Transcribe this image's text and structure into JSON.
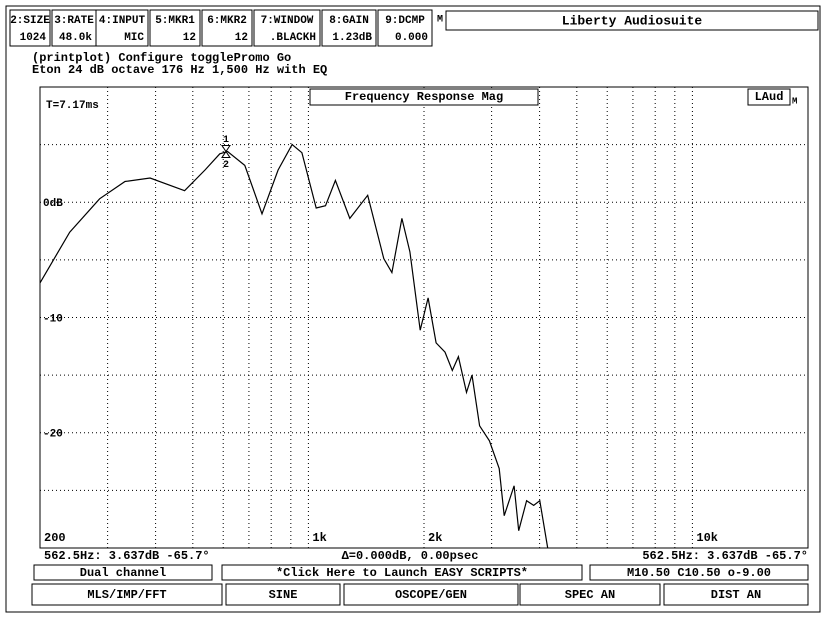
{
  "toolbar": [
    {
      "key": "2:SIZE",
      "value": "1024"
    },
    {
      "key": "3:RATE",
      "value": "48.0k"
    },
    {
      "key": "4:INPUT",
      "value": "MIC"
    },
    {
      "key": "5:MKR1",
      "value": "12"
    },
    {
      "key": "6:MKR2",
      "value": "12"
    },
    {
      "key": "7:WINDOW",
      "value": ".BLACKH"
    },
    {
      "key": "8:GAIN",
      "value": "1.23dB"
    },
    {
      "key": "9:DCMP",
      "value": "0.000"
    }
  ],
  "app_mark": "M",
  "app_title": "Liberty Audiosuite",
  "header": [
    "(printplot) Configure togglePromo Go",
    "Eton 24 dB octave 176 Hz 1,500 Hz with EQ"
  ],
  "chart_data": {
    "type": "line",
    "title": "Frequency Response Mag",
    "annotation": "T=7.17ms",
    "badge": "LAud",
    "badge_sub": "M",
    "x": [
      200,
      239,
      286,
      333,
      387,
      476,
      538,
      588,
      616,
      683,
      757,
      834,
      907,
      962,
      1048,
      1108,
      1176,
      1282,
      1427,
      1572,
      1650,
      1752,
      1838,
      1955,
      2050,
      2151,
      2269,
      2370,
      2458,
      2580,
      2667,
      2792,
      2961,
      3140,
      3236,
      3433,
      3530,
      3700,
      3860,
      4005,
      4200
    ],
    "series": [
      {
        "color": "#000000",
        "values": [
          -7.0,
          -2.6,
          0.3,
          1.8,
          2.1,
          1.0,
          2.8,
          4.2,
          4.4,
          3.2,
          -1.0,
          2.8,
          5.0,
          4.3,
          -0.5,
          -0.3,
          1.9,
          -1.4,
          0.6,
          -4.9,
          -6.1,
          -1.4,
          -4.3,
          -11.1,
          -8.3,
          -12.2,
          -13.0,
          -14.6,
          -13.4,
          -16.5,
          -15.0,
          -19.4,
          -20.7,
          -23.1,
          -27.2,
          -24.6,
          -28.5,
          -25.9,
          -26.3,
          -25.9,
          -30.0
        ]
      }
    ],
    "xscale": "log",
    "xlim": [
      200,
      20000
    ],
    "xticks": [
      200,
      {
        "value": 1000,
        "label": "1k"
      },
      {
        "value": 2000,
        "label": "2k"
      },
      {
        "value": 10000,
        "label": "10k"
      }
    ],
    "x_minor_grid": [
      300,
      400,
      500,
      600,
      700,
      800,
      900,
      3000,
      4000,
      5000,
      6000,
      7000,
      8000,
      9000
    ],
    "ylim": [
      -30,
      10
    ],
    "yticks": [
      {
        "value": 0,
        "label": "0dB"
      },
      -10,
      -20
    ],
    "y_minor_grid": [
      5,
      -5,
      -15,
      -25
    ],
    "grid": true,
    "marker": {
      "x": 610,
      "y": 4.4,
      "labels": [
        "1",
        "2"
      ]
    }
  },
  "status": {
    "left": "562.5Hz: 3.637dB  -65.7°",
    "center": "Δ=0.000dB, 0.00psec",
    "right": "562.5Hz: 3.637dB -65.7°"
  },
  "info_boxes": [
    "Dual channel",
    "*Click Here to Launch EASY SCRIPTS*",
    "M10.50 C10.50 o-9.00"
  ],
  "buttons": [
    "MLS/IMP/FFT",
    "SINE",
    "OSCOPE/GEN",
    "SPEC AN",
    "DIST AN"
  ]
}
